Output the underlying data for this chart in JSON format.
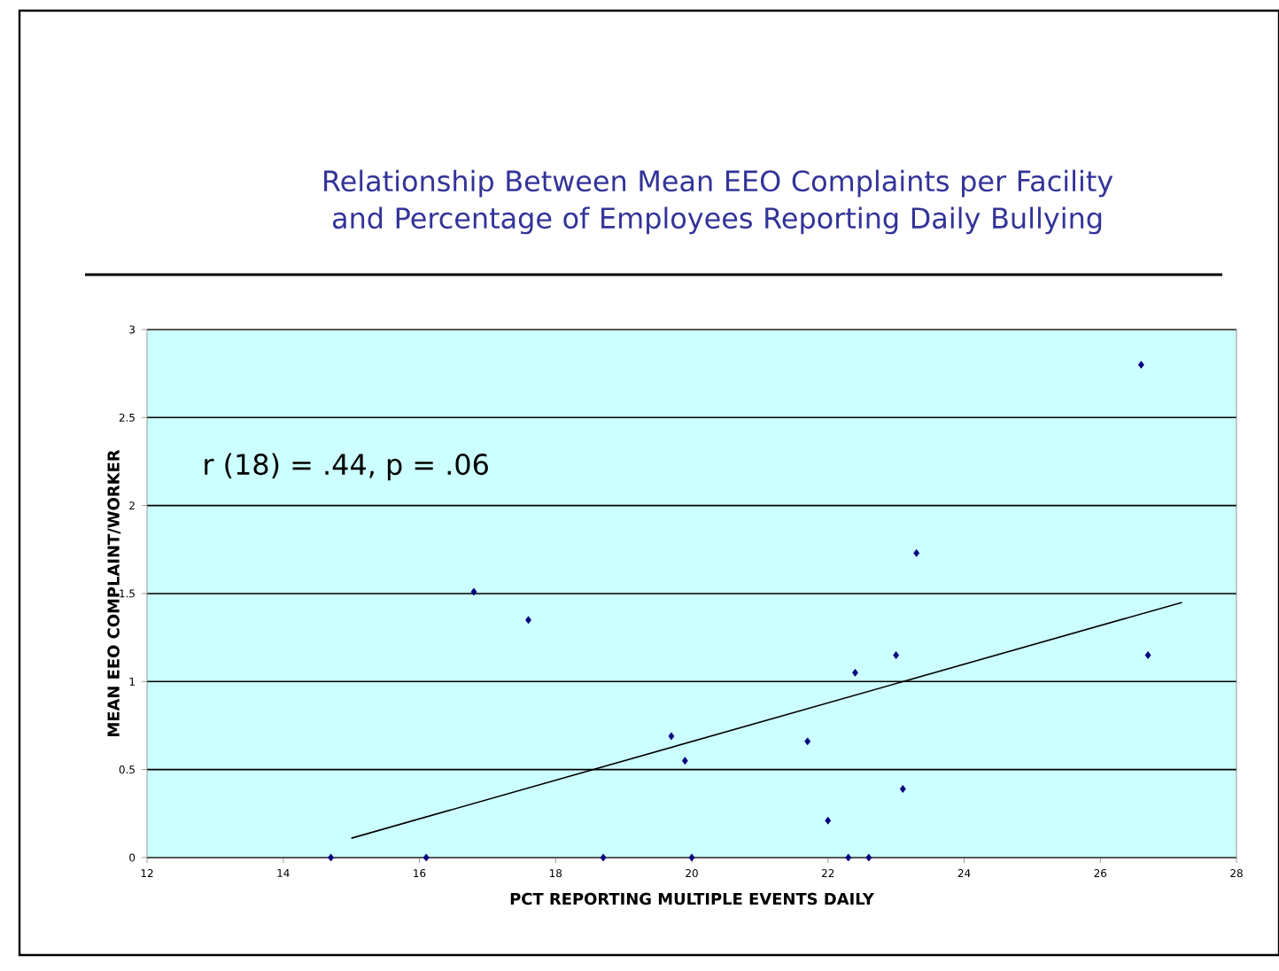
{
  "chart_data": {
    "type": "scatter",
    "title": "Relationship Between Mean EEO Complaints per Facility and Percentage of Employees Reporting Daily Bullying",
    "xlabel": "PCT REPORTING MULTIPLE EVENTS DAILY",
    "ylabel": "MEAN EEO COMPLAINT/WORKER",
    "annotations": [
      "r (18) = .44, p = .06"
    ],
    "xlim": [
      12,
      28
    ],
    "xticks": [
      12,
      14,
      16,
      18,
      20,
      22,
      24,
      26,
      28
    ],
    "ylim": [
      0,
      3
    ],
    "yticks": [
      0,
      0.5,
      1,
      1.5,
      2,
      2.5,
      3
    ],
    "grid": "y",
    "marker": "diamond",
    "series": [
      {
        "color": "#000080",
        "x": [
          14.7,
          16.1,
          16.8,
          17.6,
          18.7,
          19.7,
          19.9,
          20.0,
          21.7,
          22.0,
          22.3,
          22.4,
          22.6,
          23.0,
          23.1,
          23.3,
          26.6,
          26.7
        ],
        "values": [
          0,
          0,
          1.51,
          1.35,
          0,
          0.69,
          0.55,
          0,
          0.66,
          0.21,
          0,
          1.05,
          0,
          1.15,
          0.39,
          1.73,
          2.8,
          1.15
        ]
      },
      {
        "type": "line",
        "color": "#000000",
        "marker": "none",
        "x": [
          15,
          27.2
        ],
        "values": [
          0.11,
          1.45
        ]
      }
    ]
  }
}
